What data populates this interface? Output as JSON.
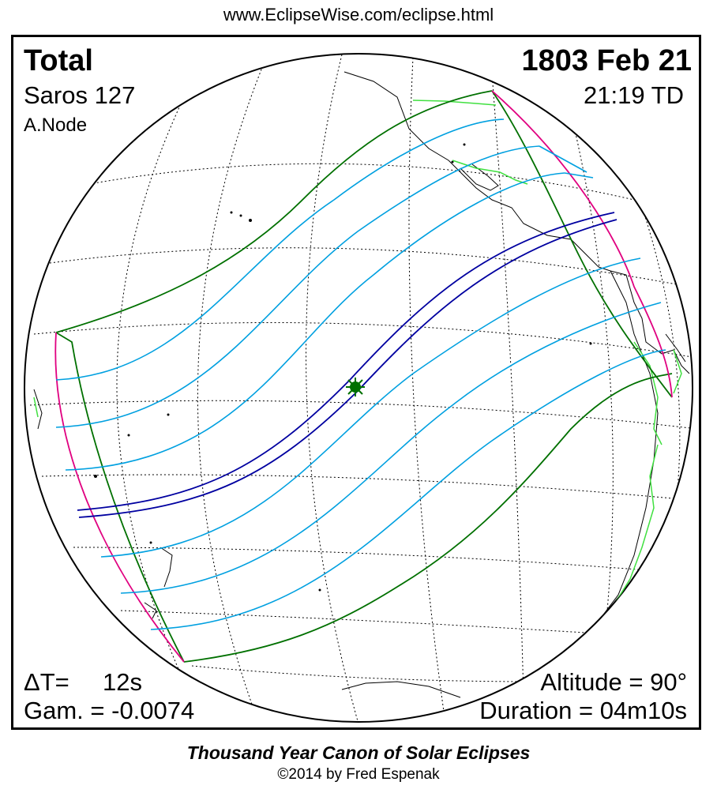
{
  "source_url": "www.EclipseWise.com/eclipse.html",
  "eclipse": {
    "type": "Total",
    "date": "1803 Feb 21",
    "saros": "Saros 127",
    "time": "21:19 TD",
    "node": "A.Node"
  },
  "stats": {
    "delta_t_label": "ΔT=",
    "delta_t_value": "12s",
    "gamma": "Gam. = -0.0074",
    "altitude": "Altitude = 90°",
    "duration": "Duration = 04m10s"
  },
  "footer": {
    "title": "Thousand Year Canon of Solar Eclipses",
    "credit": "©2014 by Fred Espenak"
  },
  "colors": {
    "totality_path": "#0000a0",
    "penumbra_limit": "#007000",
    "hourly_lines": "#00a0e0",
    "rise_set_curves": "#e00080",
    "coastline": "#000000",
    "political_borders": "#40e040",
    "greatest_eclipse_marker": "#007000"
  }
}
